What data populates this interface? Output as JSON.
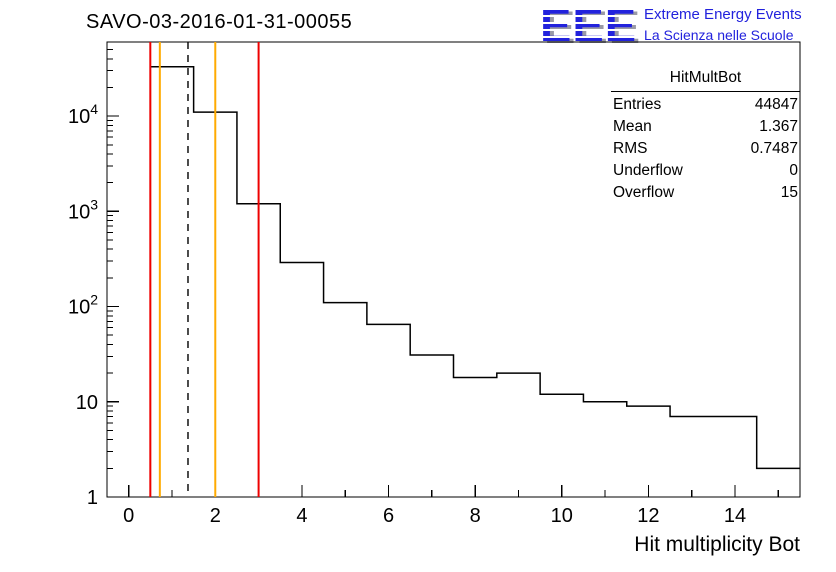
{
  "page": {
    "title": "SAVO-03-2016-01-31-00055"
  },
  "logo": {
    "acronym": "EEE",
    "line1": "Extreme Energy Events",
    "line2": "La Scienza nelle Scuole",
    "color": "#2222dd"
  },
  "stats_box": {
    "title": "HitMultBot",
    "rows": [
      {
        "label": "Entries",
        "value": "44847"
      },
      {
        "label": "Mean",
        "value": "1.367"
      },
      {
        "label": "RMS",
        "value": "0.7487"
      },
      {
        "label": "Underflow",
        "value": "0"
      },
      {
        "label": "Overflow",
        "value": "15"
      }
    ]
  },
  "axes": {
    "x_tick_values": [
      0,
      2,
      4,
      6,
      8,
      10,
      12,
      14
    ],
    "x_tick_labels": [
      "0",
      "2",
      "4",
      "6",
      "8",
      "10",
      "12",
      "14"
    ],
    "y_tick_values": [
      1,
      10,
      100,
      1000,
      10000
    ],
    "y_tick_labels": [
      "1",
      "10",
      "10^2",
      "10^3",
      "10^4"
    ]
  },
  "chart_data": {
    "type": "histogram",
    "title": "SAVO-03-2016-01-31-00055",
    "xlabel": "Hit multiplicity Bot",
    "ylabel": "",
    "y_scale": "log",
    "x_range": [
      -0.5,
      15.5
    ],
    "y_range": [
      1,
      60000
    ],
    "bin_width": 1,
    "bin_centers": [
      1,
      2,
      3,
      4,
      5,
      6,
      7,
      8,
      9,
      10,
      11,
      12,
      13,
      14,
      15
    ],
    "counts": [
      33000,
      11000,
      1200,
      290,
      110,
      65,
      31,
      18,
      20,
      12,
      10,
      9,
      7,
      7,
      2
    ],
    "line_color": "#000000",
    "marker_lines": [
      {
        "x": 0.5,
        "color": "#ee0000",
        "style": "solid",
        "name": "red-threshold-line-left"
      },
      {
        "x": 0.72,
        "color": "#ffaa00",
        "style": "solid",
        "name": "orange-threshold-line-left"
      },
      {
        "x": 1.37,
        "color": "#000000",
        "style": "dashed",
        "name": "mean-dashed-line"
      },
      {
        "x": 2.0,
        "color": "#ffaa00",
        "style": "solid",
        "name": "orange-threshold-line-right"
      },
      {
        "x": 3.0,
        "color": "#ee0000",
        "style": "solid",
        "name": "red-threshold-line-right"
      }
    ],
    "stats": {
      "entries": 44847,
      "mean": 1.367,
      "rms": 0.7487,
      "underflow": 0,
      "overflow": 15
    }
  }
}
